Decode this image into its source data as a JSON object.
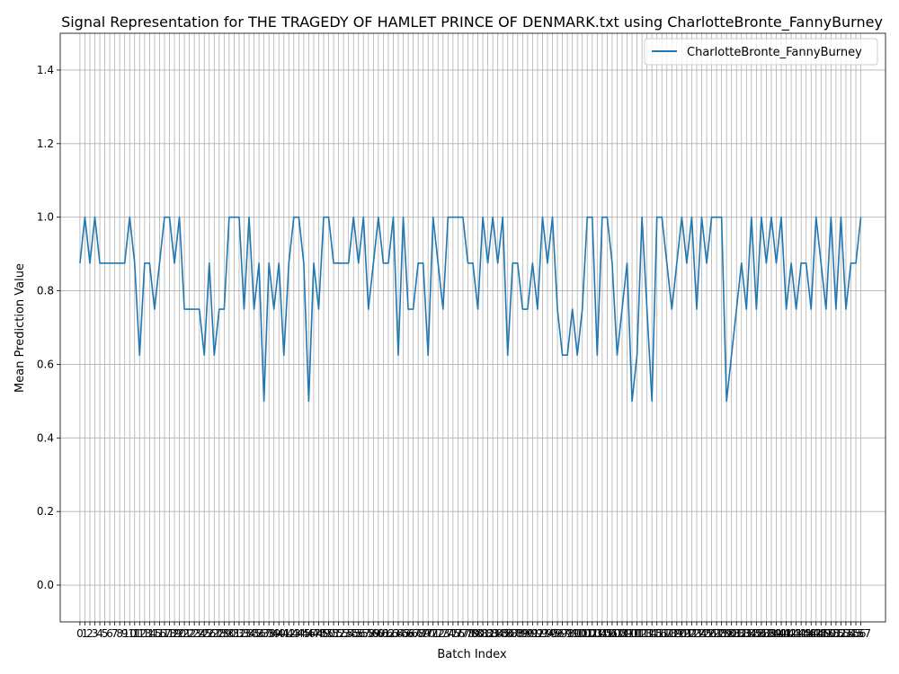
{
  "chart_data": {
    "type": "line",
    "title": "Signal Representation for THE TRAGEDY OF HAMLET PRINCE OF DENMARK.txt using CharlotteBronte_FannyBurney",
    "xlabel": "Batch Index",
    "ylabel": "Mean Prediction Value",
    "xlim": [
      -3.96,
      161.96
    ],
    "ylim": [
      -0.1,
      1.5
    ],
    "yticks": [
      0.0,
      0.2,
      0.4,
      0.6,
      0.8,
      1.0,
      1.2,
      1.4
    ],
    "ytick_labels": [
      "0.0",
      "0.2",
      "0.4",
      "0.6",
      "0.8",
      "1.0",
      "1.2",
      "1.4"
    ],
    "xtick_step": 1,
    "grid": true,
    "legend_position": "top-right",
    "series": [
      {
        "name": "CharlotteBronte_FannyBurney",
        "color": "#1f77b4",
        "values": [
          0.875,
          1.0,
          0.875,
          1.0,
          0.875,
          0.875,
          0.875,
          0.875,
          0.875,
          0.875,
          1.0,
          0.875,
          0.625,
          0.875,
          0.875,
          0.75,
          0.875,
          1.0,
          1.0,
          0.875,
          1.0,
          0.75,
          0.75,
          0.75,
          0.75,
          0.625,
          0.875,
          0.625,
          0.75,
          0.75,
          1.0,
          1.0,
          1.0,
          0.75,
          1.0,
          0.75,
          0.875,
          0.5,
          0.875,
          0.75,
          0.875,
          0.625,
          0.875,
          1.0,
          1.0,
          0.875,
          0.5,
          0.875,
          0.75,
          1.0,
          1.0,
          0.875,
          0.875,
          0.875,
          0.875,
          1.0,
          0.875,
          1.0,
          0.75,
          0.875,
          1.0,
          0.875,
          0.875,
          1.0,
          0.625,
          1.0,
          0.75,
          0.75,
          0.875,
          0.875,
          0.625,
          1.0,
          0.875,
          0.75,
          1.0,
          1.0,
          1.0,
          1.0,
          0.875,
          0.875,
          0.75,
          1.0,
          0.875,
          1.0,
          0.875,
          1.0,
          0.625,
          0.875,
          0.875,
          0.75,
          0.75,
          0.875,
          0.75,
          1.0,
          0.875,
          1.0,
          0.75,
          0.625,
          0.625,
          0.75,
          0.625,
          0.75,
          1.0,
          1.0,
          0.625,
          1.0,
          1.0,
          0.875,
          0.625,
          0.75,
          0.875,
          0.5,
          0.625,
          1.0,
          0.75,
          0.5,
          1.0,
          1.0,
          0.875,
          0.75,
          0.875,
          1.0,
          0.875,
          1.0,
          0.75,
          1.0,
          0.875,
          1.0,
          1.0,
          1.0,
          0.5,
          0.625,
          0.75,
          0.875,
          0.75,
          1.0,
          0.75,
          1.0,
          0.875,
          1.0,
          0.875,
          1.0,
          0.75,
          0.875,
          0.75,
          0.875,
          0.875,
          0.75,
          1.0,
          0.875,
          0.75,
          1.0,
          0.75,
          1.0,
          0.75,
          0.875,
          0.875,
          1.0
        ]
      }
    ]
  }
}
